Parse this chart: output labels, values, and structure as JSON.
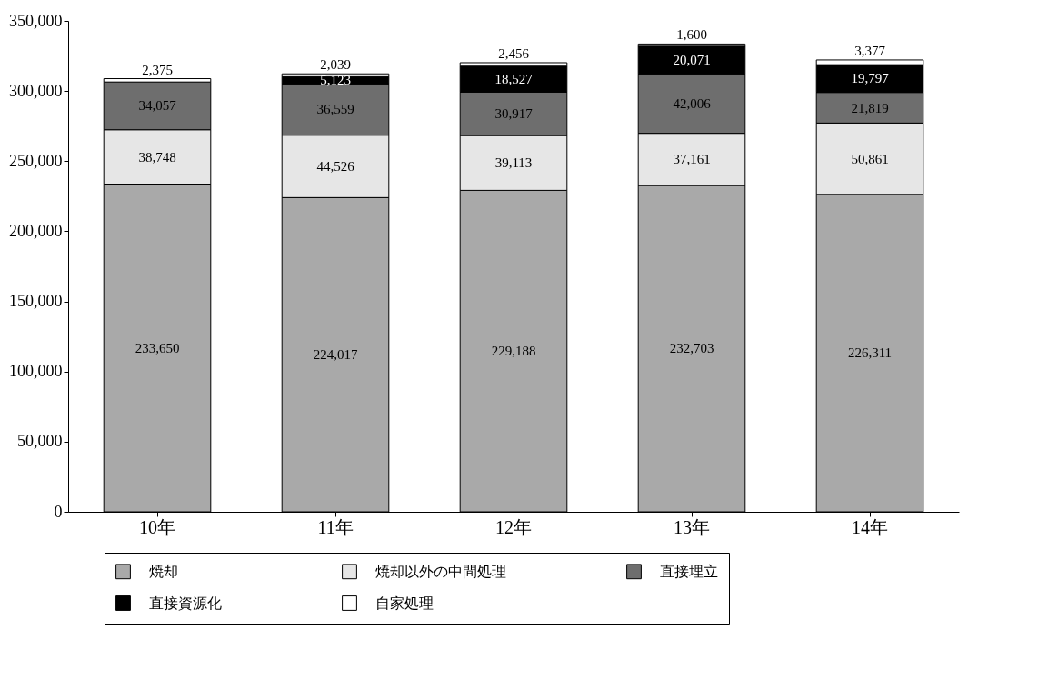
{
  "chart_data": {
    "type": "bar",
    "stacked": true,
    "categories": [
      "10年",
      "11年",
      "12年",
      "13年",
      "14年"
    ],
    "series": [
      {
        "name": "焼却",
        "color": "#a9a9a9",
        "values": [
          233650,
          224017,
          229188,
          232703,
          226311
        ],
        "value_labels": [
          "233,650",
          "224,017",
          "229,188",
          "232,703",
          "226,311"
        ]
      },
      {
        "name": "焼却以外の中間処理",
        "color": "#e6e6e6",
        "values": [
          38748,
          44526,
          39113,
          37161,
          50861
        ],
        "value_labels": [
          "38,748",
          "44,526",
          "39,113",
          "37,161",
          "50,861"
        ]
      },
      {
        "name": "直接埋立",
        "color": "#6e6e6e",
        "values": [
          34057,
          36559,
          30917,
          42006,
          21819
        ],
        "value_labels": [
          "34,057",
          "36,559",
          "30,917",
          "42,006",
          "21,819"
        ]
      },
      {
        "name": "直接資源化",
        "color": "#000000",
        "values": [
          null,
          5123,
          18527,
          20071,
          19797
        ],
        "value_labels": [
          null,
          "5,123",
          "18,527",
          "20,071",
          "19,797"
        ]
      },
      {
        "name": "自家処理",
        "color": "#ffffff",
        "values": [
          2375,
          2039,
          2456,
          1600,
          3377
        ],
        "value_labels": [
          "2,375",
          "2,039",
          "2,456",
          "1,600",
          "3,377"
        ]
      }
    ],
    "ylim": [
      0,
      350000
    ],
    "yticks": [
      0,
      {
        "value": 50000,
        "label": "50,000"
      },
      {
        "value": 100000,
        "label": "100,000"
      },
      {
        "value": 150000,
        "label": "150,000"
      },
      {
        "value": 200000,
        "label": "200,000"
      },
      {
        "value": 250000,
        "label": "250,000"
      },
      {
        "value": 300000,
        "label": "300,000"
      },
      {
        "value": 350000,
        "label": "350,000"
      }
    ],
    "grid": false,
    "legend": "bottom"
  }
}
